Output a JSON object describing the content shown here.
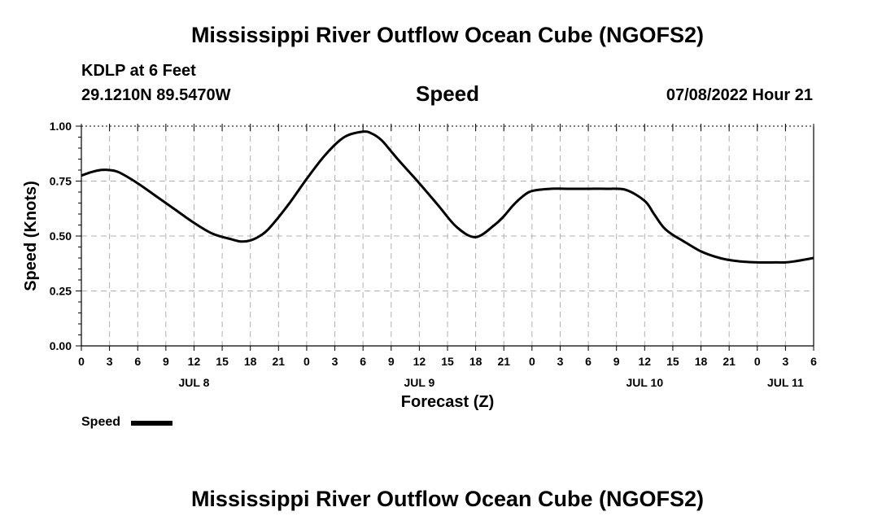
{
  "header": {
    "title": "Mississippi River Outflow Ocean Cube (NGOFS2)",
    "station": "KDLP at 6 Feet",
    "coords": "29.1210N  89.5470W",
    "variable": "Speed",
    "datetime": "07/08/2022 Hour 21"
  },
  "footer": {
    "title": "Mississippi River Outflow Ocean Cube (NGOFS2)"
  },
  "legend": {
    "label": "Speed"
  },
  "chart_data": {
    "type": "line",
    "title": "Speed",
    "xlabel": "Forecast (Z)",
    "ylabel": "Speed (Knots)",
    "xlim": [
      0,
      78
    ],
    "ylim": [
      0,
      1.0
    ],
    "y_ticks": [
      0.0,
      0.25,
      0.5,
      0.75,
      1.0
    ],
    "y_tick_labels": [
      "0.00",
      "0.25",
      "0.50",
      "0.75",
      "1.00"
    ],
    "x_tick_hours": [
      0,
      3,
      6,
      9,
      12,
      15,
      18,
      21,
      24,
      27,
      30,
      33,
      36,
      39,
      42,
      45,
      48,
      51,
      54,
      57,
      60,
      63,
      66,
      69,
      72,
      75,
      78
    ],
    "x_tick_labels": [
      "0",
      "3",
      "6",
      "9",
      "12",
      "15",
      "18",
      "21",
      "0",
      "3",
      "6",
      "9",
      "12",
      "15",
      "18",
      "21",
      "0",
      "3",
      "6",
      "9",
      "12",
      "15",
      "18",
      "21",
      "0",
      "3",
      "6"
    ],
    "day_labels": [
      {
        "label": "JUL 8",
        "hour": 12
      },
      {
        "label": "JUL 9",
        "hour": 36
      },
      {
        "label": "JUL 10",
        "hour": 60
      },
      {
        "label": "JUL 11",
        "hour": 75
      }
    ],
    "grid": true,
    "legend_position": "bottom-left",
    "series": [
      {
        "name": "Speed",
        "color": "#000000",
        "x": [
          0,
          1,
          2,
          3,
          4,
          6,
          8,
          10,
          12,
          14,
          16,
          17,
          18,
          19,
          20,
          22,
          24,
          26,
          28,
          30,
          31,
          32,
          33,
          34,
          36,
          38,
          40,
          42,
          44,
          45,
          46,
          47,
          48,
          50,
          52,
          54,
          56,
          58,
          60,
          61,
          62,
          63,
          64,
          66,
          68,
          70,
          72,
          74,
          75,
          76,
          78
        ],
        "y": [
          0.775,
          0.79,
          0.8,
          0.8,
          0.79,
          0.74,
          0.68,
          0.62,
          0.56,
          0.51,
          0.485,
          0.475,
          0.48,
          0.5,
          0.535,
          0.64,
          0.76,
          0.87,
          0.95,
          0.975,
          0.965,
          0.935,
          0.885,
          0.835,
          0.74,
          0.64,
          0.54,
          0.495,
          0.55,
          0.59,
          0.64,
          0.68,
          0.705,
          0.715,
          0.715,
          0.715,
          0.715,
          0.71,
          0.66,
          0.6,
          0.54,
          0.505,
          0.48,
          0.43,
          0.4,
          0.385,
          0.38,
          0.38,
          0.38,
          0.385,
          0.4
        ]
      }
    ]
  }
}
